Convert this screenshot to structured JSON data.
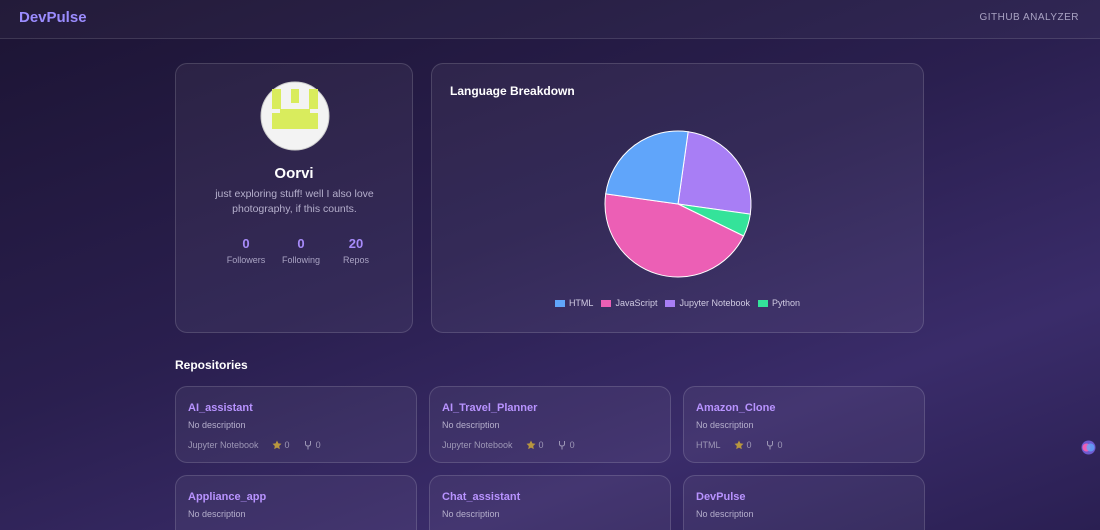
{
  "header": {
    "brand": "DevPulse",
    "nav": "GITHUB ANALYZER"
  },
  "profile": {
    "name": "Oorvi",
    "bio": "just exploring stuff! well I also love photography, if this counts.",
    "stats": [
      {
        "value": 0,
        "label": "Followers"
      },
      {
        "value": 0,
        "label": "Following"
      },
      {
        "value": 20,
        "label": "Repos"
      }
    ]
  },
  "chart_data": {
    "type": "pie",
    "title": "Language Breakdown",
    "categories": [
      "HTML",
      "JavaScript",
      "Jupyter Notebook",
      "Python"
    ],
    "values": [
      5,
      9,
      5,
      1
    ],
    "colors": [
      "#60a5fa",
      "#ec5fb5",
      "#a87ef5",
      "#34e39a"
    ],
    "legend": "bottom"
  },
  "repositories": {
    "title": "Repositories",
    "items": [
      {
        "name": "AI_assistant",
        "description": "No description",
        "language": "Jupyter Notebook",
        "stars": 0,
        "forks": 0
      },
      {
        "name": "AI_Travel_Planner",
        "description": "No description",
        "language": "Jupyter Notebook",
        "stars": 0,
        "forks": 0
      },
      {
        "name": "Amazon_Clone",
        "description": "No description",
        "language": "HTML",
        "stars": 0,
        "forks": 0
      },
      {
        "name": "Appliance_app",
        "description": "No description"
      },
      {
        "name": "Chat_assistant",
        "description": "No description"
      },
      {
        "name": "DevPulse",
        "description": "No description"
      }
    ]
  }
}
